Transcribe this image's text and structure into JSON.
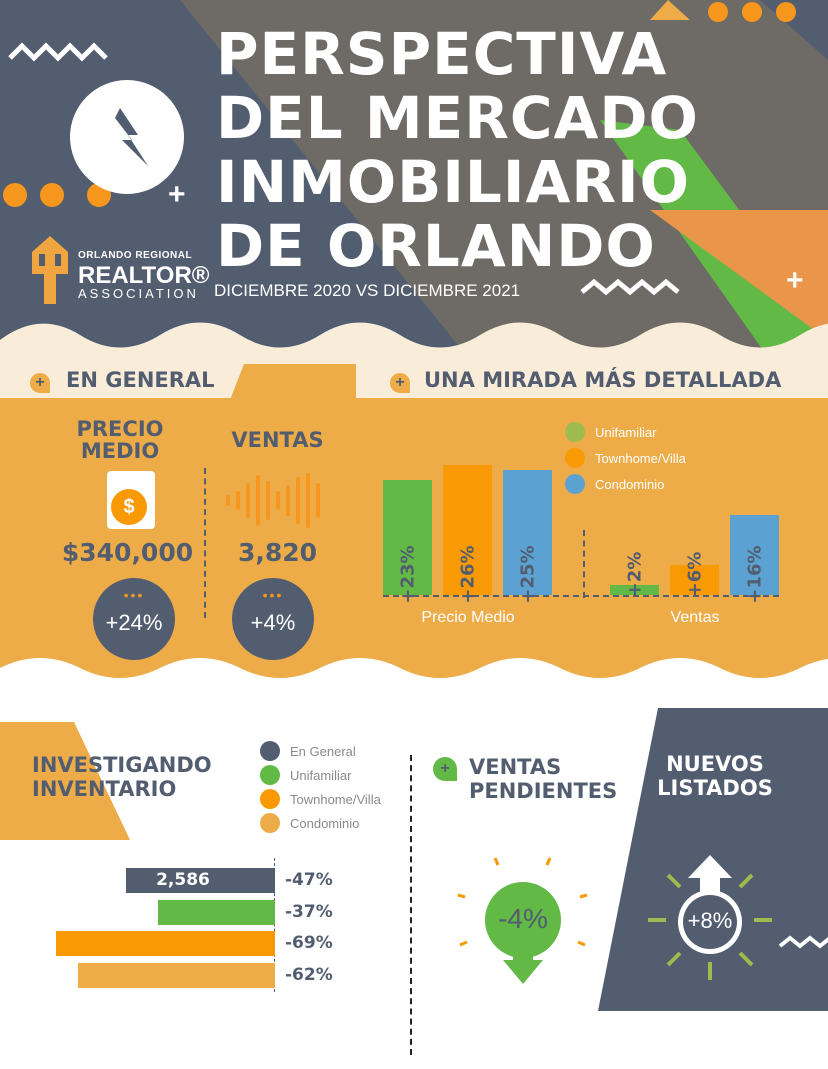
{
  "header": {
    "title_lines": [
      "PERSPECTIVA",
      "DEL MERCADO",
      "INMOBILIARIO",
      "DE ORLANDO"
    ],
    "subtitle": "DICIEMBRE 2020 VS DICIEMBRE 2021",
    "logo": {
      "line1": "ORLANDO REGIONAL",
      "line2": "REALTOR®",
      "line3": "ASSOCIATION"
    }
  },
  "general": {
    "title": "EN GENERAL",
    "precio_label": "PRECIO MEDIO",
    "precio_value": "$340,000",
    "precio_change": "+24%",
    "ventas_label": "VENTAS",
    "ventas_value": "3,820",
    "ventas_change": "+4%"
  },
  "detalle": {
    "title": "UNA MIRADA MÁS DETALLADA",
    "legend": [
      "Unifamiliar",
      "Townhome/Villa",
      "Condominio"
    ],
    "groups": [
      "Precio Medio",
      "Ventas"
    ]
  },
  "inventario": {
    "title_lines": [
      "INVESTIGANDO",
      "INVENTARIO"
    ],
    "legend": [
      "En General",
      "Unifamiliar",
      "Townhome/Villa",
      "Condominio"
    ],
    "total": "2,586"
  },
  "pendientes": {
    "title_lines": [
      "VENTAS",
      "PENDIENTES"
    ],
    "change": "-4%"
  },
  "nuevos": {
    "title_lines": [
      "NUEVOS",
      "LISTADOS"
    ],
    "change": "+8%"
  },
  "colors": {
    "slate": "#535d70",
    "green": "#62b946",
    "orange": "#f99a05",
    "blue": "#5ba2d3",
    "gold": "#edac48"
  },
  "chart_data": [
    {
      "type": "bar",
      "title": "Una mirada más detallada",
      "categories": [
        "Precio Medio",
        "Ventas"
      ],
      "series": [
        {
          "name": "Unifamiliar",
          "values": [
            23,
            2
          ],
          "labels": [
            "+23%",
            "+2%"
          ]
        },
        {
          "name": "Townhome/Villa",
          "values": [
            26,
            6
          ],
          "labels": [
            "+26%",
            "+6%"
          ]
        },
        {
          "name": "Condominio",
          "values": [
            25,
            16
          ],
          "labels": [
            "+25%",
            "+16%"
          ]
        }
      ]
    },
    {
      "type": "bar",
      "title": "Investigando Inventario",
      "categories": [
        "En General",
        "Unifamiliar",
        "Townhome/Villa",
        "Condominio"
      ],
      "values": [
        -47,
        -37,
        -69,
        -62
      ],
      "labels": [
        "-47%",
        "-37%",
        "-69%",
        "-62%"
      ]
    }
  ]
}
